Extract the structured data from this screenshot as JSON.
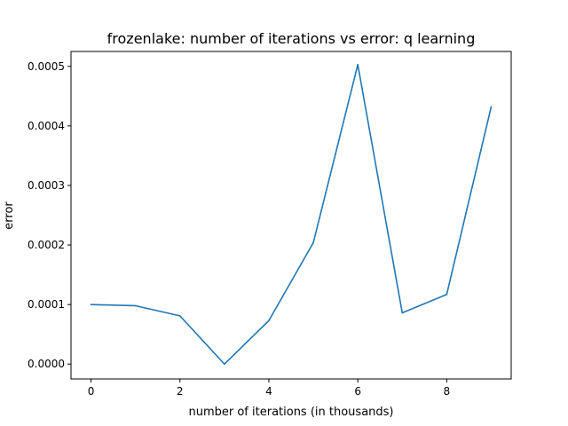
{
  "chart_data": {
    "type": "line",
    "title": "frozenlake: number of iterations vs error: q learning",
    "xlabel": "number of iterations (in thousands)",
    "ylabel": "error",
    "xlim": [
      -0.45,
      9.45
    ],
    "ylim": [
      -2.5e-05,
      0.000525
    ],
    "xticks": [
      0,
      2,
      4,
      6,
      8
    ],
    "xtick_labels": [
      "0",
      "2",
      "4",
      "6",
      "8"
    ],
    "yticks": [
      0,
      0.0001,
      0.0002,
      0.0003,
      0.0004,
      0.0005
    ],
    "ytick_labels": [
      "0.0000",
      "0.0001",
      "0.0002",
      "0.0003",
      "0.0004",
      "0.0005"
    ],
    "grid": false,
    "series": [
      {
        "color": "#1f77b4",
        "x": [
          0,
          1,
          2,
          3,
          4,
          5,
          6,
          7,
          8,
          9
        ],
        "y": [
          0.0001,
          9.8e-05,
          8.1e-05,
          0.0,
          7.3e-05,
          0.000204,
          0.000503,
          8.6e-05,
          0.000117,
          0.000432
        ]
      }
    ]
  }
}
